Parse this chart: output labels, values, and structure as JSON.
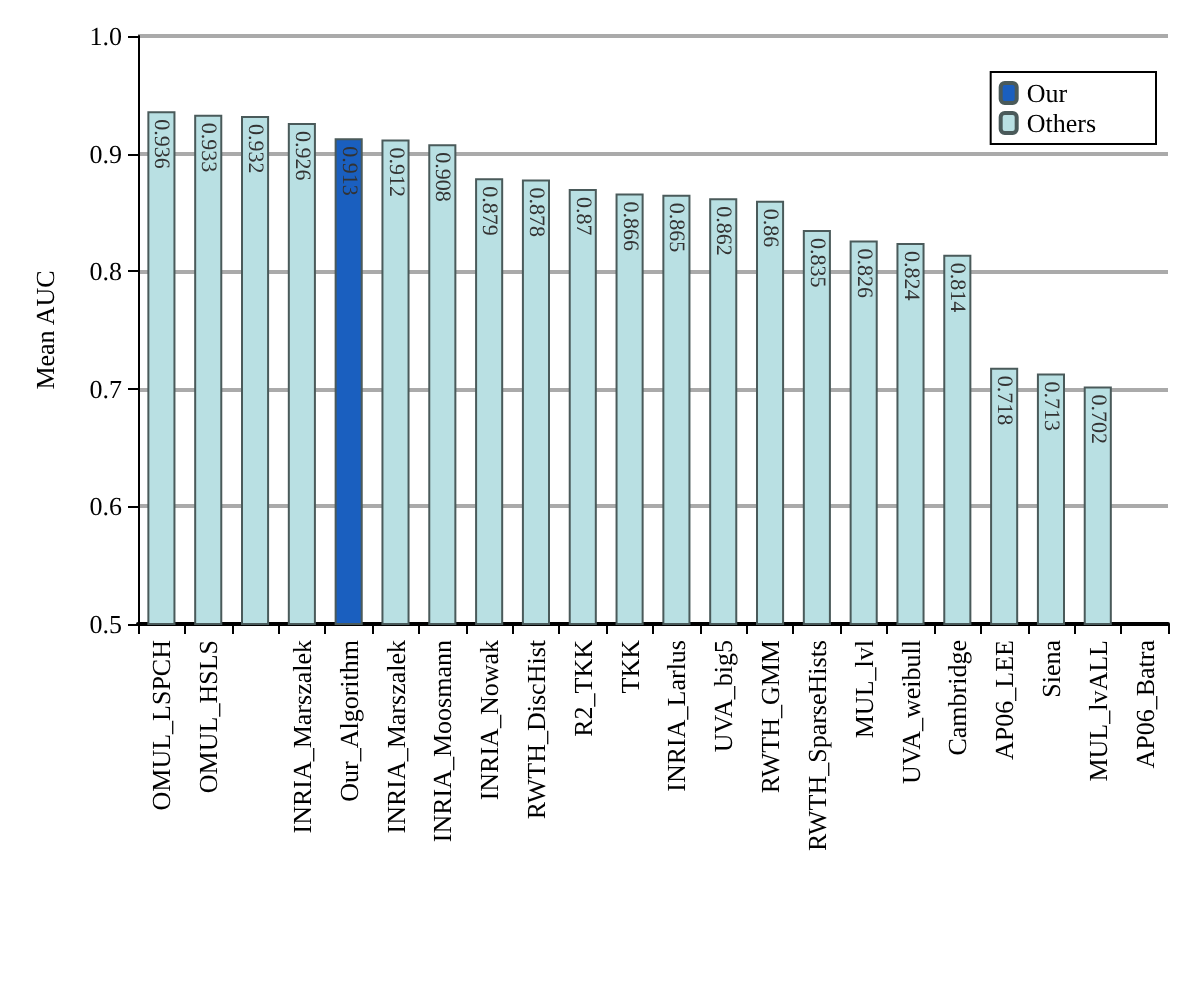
{
  "chart_data": {
    "type": "bar",
    "ylabel": "Mean AUC",
    "categories": [
      "OMUL_LSPCH",
      "OMUL_HSLS",
      null,
      "INRIA_Marszalek",
      "Our_Algorithm",
      "INRIA_Marszalek",
      "INRIA_Moosmann",
      "INRIA_Nowak",
      "RWTH_DiscHist",
      "R2_TKK",
      "TKK",
      "INRIA_Larlus",
      "UVA_big5",
      "RWTH_GMM",
      "RWTH_SparseHists",
      "MUL_lvl",
      "UVA_weibull",
      "Cambridge",
      "AP06_LEE",
      "Siena",
      "MUL_lvALL",
      "AP06_Batra"
    ],
    "series": [
      {
        "name": "Our",
        "color": "#1a5fbf",
        "values": [
          null,
          null,
          null,
          null,
          0.913,
          null,
          null,
          null,
          null,
          null,
          null,
          null,
          null,
          null,
          null,
          null,
          null,
          null,
          null,
          null,
          null,
          null
        ]
      },
      {
        "name": "Others",
        "color": "#b9e0e3",
        "values": [
          0.936,
          0.933,
          0.932,
          0.926,
          null,
          0.912,
          0.908,
          0.879,
          0.878,
          0.87,
          0.866,
          0.865,
          0.862,
          0.86,
          0.835,
          0.826,
          0.824,
          0.814,
          0.718,
          0.713,
          0.702,
          null
        ]
      }
    ],
    "ylim": [
      0.5,
      1.0
    ],
    "yticks": [
      {
        "value": 0.5,
        "label": "0.5"
      },
      {
        "value": 0.6,
        "label": "0.6"
      },
      {
        "value": 0.7,
        "label": "0.7"
      },
      {
        "value": 0.8,
        "label": "0.8"
      },
      {
        "value": 0.9,
        "label": "0.9"
      },
      {
        "value": 1.0,
        "label": "1.0"
      }
    ],
    "grid": "y",
    "legend": "top right",
    "data_labels": true
  }
}
